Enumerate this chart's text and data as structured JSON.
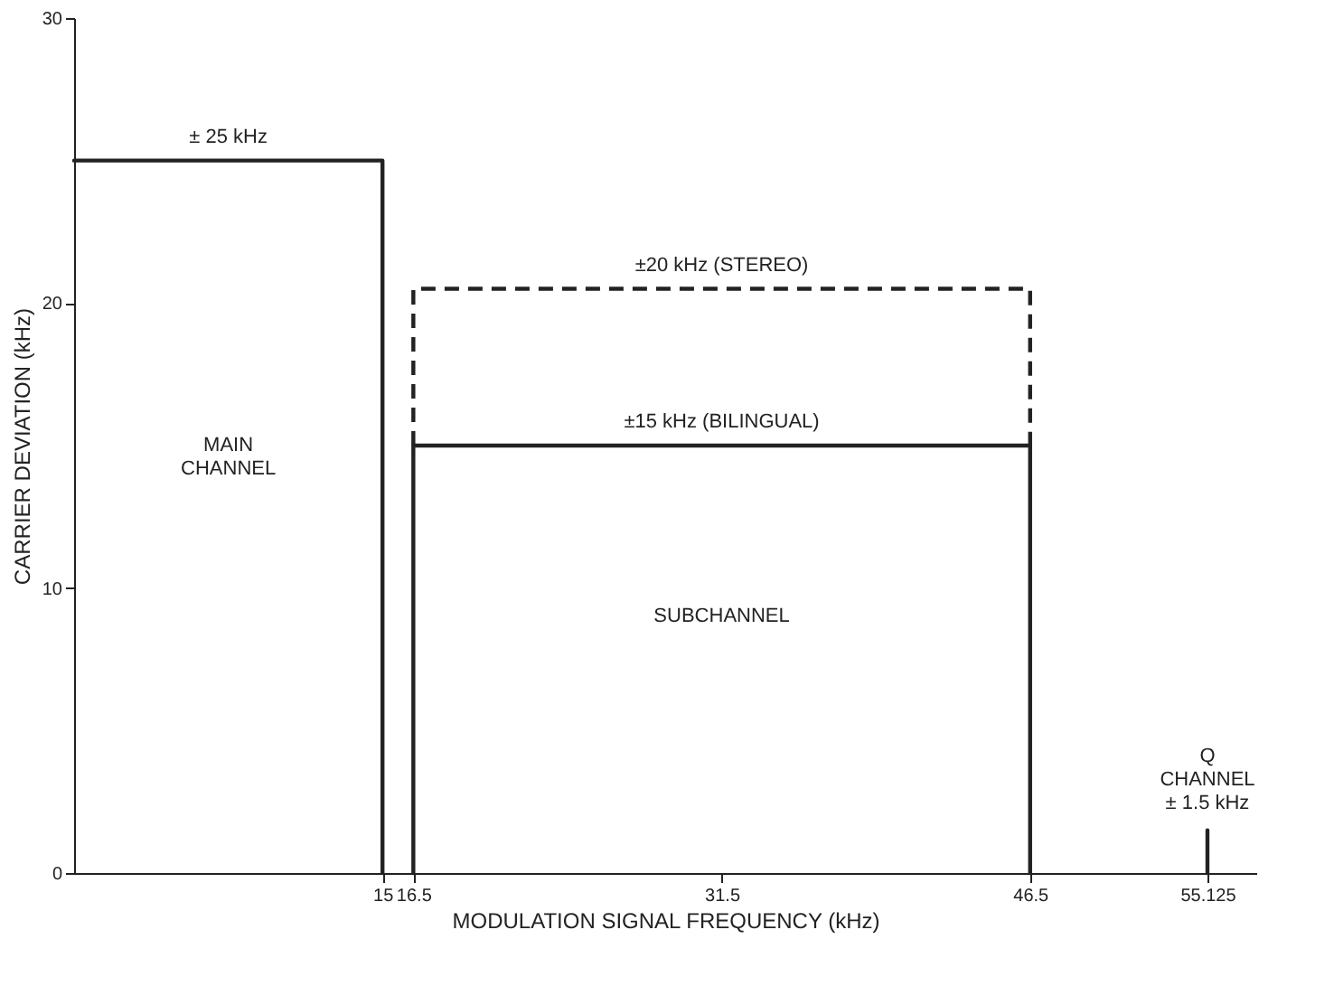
{
  "chart_data": {
    "type": "line",
    "xlabel": "MODULATION SIGNAL FREQUENCY (kHz)",
    "ylabel": "CARRIER DEVIATION (kHz)",
    "xlim": [
      0,
      57.5
    ],
    "xticks": [
      15,
      16.5,
      31.5,
      46.5,
      55.125
    ],
    "ylim": [
      0,
      30
    ],
    "yticks": [
      0,
      10,
      20,
      30
    ],
    "grid": false,
    "series": [
      {
        "color": "#222222",
        "line_style": "solid",
        "x": [
          0,
          15,
          15
        ],
        "values": [
          25,
          25,
          0
        ]
      },
      {
        "color": "#222222",
        "line_style": "dashed",
        "x": [
          16.5,
          16.5,
          46.5,
          46.5
        ],
        "values": [
          15,
          20.5,
          20.5,
          15
        ]
      },
      {
        "color": "#222222",
        "line_style": "solid",
        "x": [
          16.5,
          16.5,
          46.5,
          46.5
        ],
        "values": [
          0,
          15,
          15,
          0
        ]
      },
      {
        "color": "#222222",
        "line_style": "solid",
        "x": [
          55.125,
          55.125
        ],
        "values": [
          0,
          1.5
        ]
      }
    ],
    "annotations": [
      {
        "text": "± 25 kHz",
        "x": 7.5,
        "y": 25
      },
      "MAIN\nCHANNEL",
      {
        "text": "±20 kHz (STEREO)",
        "x": 31.5,
        "y": 20.5
      },
      {
        "text": "±15 kHz (BILINGUAL)",
        "x": 31.5,
        "y": 15
      },
      "SUBCHANNEL",
      {
        "text": "Q\nCHANNEL\n± 1.5 kHz",
        "x": 55.125,
        "y": 1.5
      }
    ]
  }
}
